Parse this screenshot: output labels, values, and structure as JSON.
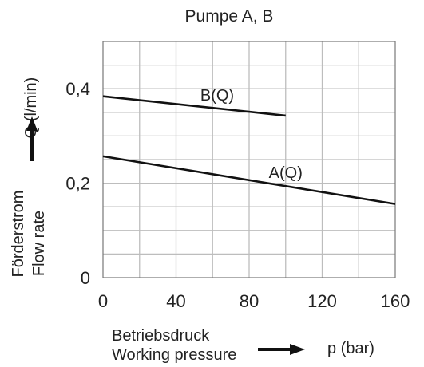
{
  "chart_data": {
    "type": "line",
    "title": "Pumpe A, B",
    "xlabel_de": "Betriebsdruck",
    "xlabel_en": "Working pressure",
    "xunit": "p (bar)",
    "ylabel_de": "Förderstrom",
    "ylabel_en": "Flow rate",
    "yunit": "Q (l/min)",
    "xlim": [
      0,
      160
    ],
    "ylim": [
      0,
      0.5
    ],
    "x_ticks": [
      0,
      40,
      80,
      120,
      160
    ],
    "x_tick_labels": [
      "0",
      "40",
      "80",
      "120",
      "160"
    ],
    "y_ticks": [
      0,
      0.2,
      0.4
    ],
    "y_tick_labels": [
      "0",
      "0,2",
      "0,4"
    ],
    "grid": true,
    "series": [
      {
        "name": "B(Q)",
        "x": [
          0,
          100
        ],
        "y": [
          0.384,
          0.343
        ]
      },
      {
        "name": "A(Q)",
        "x": [
          0,
          160
        ],
        "y": [
          0.257,
          0.156
        ]
      }
    ]
  }
}
